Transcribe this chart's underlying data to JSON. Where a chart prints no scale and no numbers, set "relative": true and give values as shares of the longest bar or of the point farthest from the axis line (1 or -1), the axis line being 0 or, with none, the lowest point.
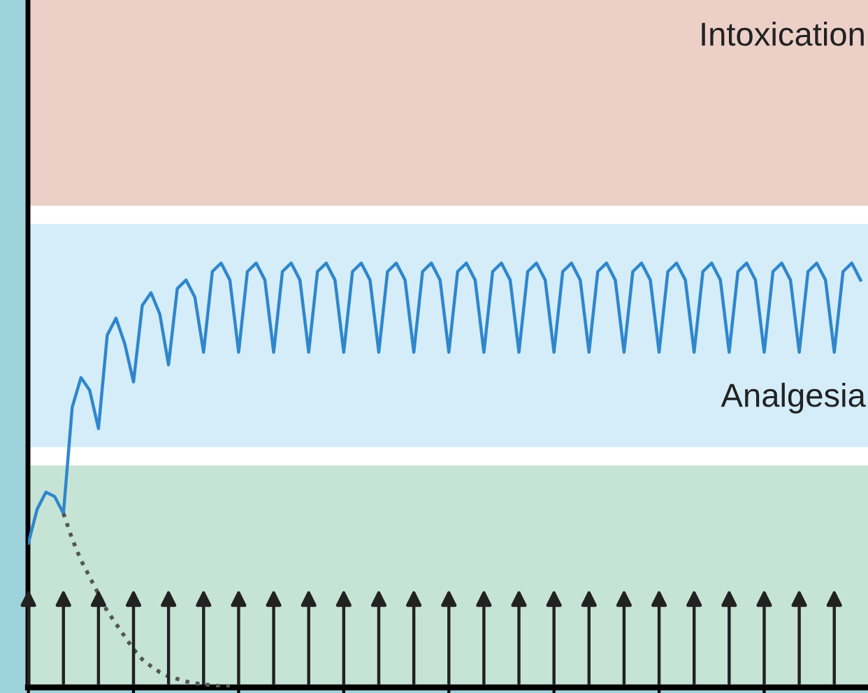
{
  "chart_data": {
    "type": "line",
    "relative": true,
    "categories": [
      null,
      null,
      null,
      null,
      null,
      null,
      null,
      null,
      null,
      null,
      null,
      null,
      null,
      null,
      null,
      null,
      null,
      null,
      null,
      null,
      null,
      null,
      null,
      null,
      null,
      null,
      null,
      null,
      null,
      null,
      null,
      null,
      null,
      null,
      null,
      null,
      null,
      null,
      null,
      null,
      null,
      null,
      null,
      null,
      null,
      null,
      null,
      null,
      null,
      null,
      null,
      null,
      null,
      null,
      null,
      null,
      null,
      null,
      null,
      null,
      null,
      null,
      null,
      null,
      null,
      null,
      null,
      null,
      null,
      null,
      null,
      null,
      null,
      null,
      null,
      null,
      null,
      null,
      null,
      null,
      null,
      null,
      null,
      null,
      null,
      null,
      null,
      null,
      null,
      null,
      null,
      null,
      null,
      null,
      null,
      null
    ],
    "series": [
      {
        "color": "#2f86cc",
        "line_style": "solid",
        "values": [
          0.34,
          0.42,
          0.46,
          0.45,
          0.41,
          0.66,
          0.73,
          0.7,
          0.61,
          0.83,
          0.87,
          0.81,
          0.72,
          0.9,
          0.93,
          0.88,
          0.76,
          0.94,
          0.96,
          0.92,
          0.79,
          0.98,
          1.0,
          0.96,
          0.79,
          0.98,
          1.0,
          0.96,
          0.79,
          0.98,
          1.0,
          0.96,
          0.79,
          0.98,
          1.0,
          0.96,
          0.79,
          0.98,
          1.0,
          0.96,
          0.79,
          0.98,
          1.0,
          0.96,
          0.79,
          0.98,
          1.0,
          0.96,
          0.79,
          0.98,
          1.0,
          0.96,
          0.79,
          0.98,
          1.0,
          0.96,
          0.79,
          0.98,
          1.0,
          0.96,
          0.79,
          0.98,
          1.0,
          0.96,
          0.79,
          0.98,
          1.0,
          0.96,
          0.79,
          0.98,
          1.0,
          0.96,
          0.79,
          0.98,
          1.0,
          0.96,
          0.79,
          0.98,
          1.0,
          0.96,
          0.79,
          0.98,
          1.0,
          0.96,
          0.79,
          0.98,
          1.0,
          0.96,
          0.79,
          0.98,
          1.0,
          0.96,
          0.79,
          0.98,
          1.0,
          0.96
        ]
      },
      {
        "color": "#555555",
        "line_style": "dotted",
        "values": [
          null,
          null,
          null,
          null,
          0.41,
          0.35,
          0.3,
          0.26,
          0.22,
          0.18,
          0.15,
          0.12,
          0.09,
          0.066,
          0.05,
          0.036,
          0.026,
          0.02,
          0.014,
          0.01,
          0.007,
          0.005,
          0.003,
          0.002,
          null,
          null,
          null,
          null,
          null,
          null,
          null,
          null,
          null,
          null,
          null,
          null,
          null,
          null,
          null,
          null,
          null,
          null,
          null,
          null,
          null,
          null,
          null,
          null,
          null,
          null,
          null,
          null,
          null,
          null,
          null,
          null,
          null,
          null,
          null,
          null,
          null,
          null,
          null,
          null,
          null,
          null,
          null,
          null,
          null,
          null,
          null,
          null,
          null,
          null,
          null,
          null,
          null,
          null,
          null,
          null,
          null,
          null,
          null,
          null,
          null,
          null,
          null,
          null,
          null,
          null,
          null,
          null,
          null,
          null,
          null,
          null
        ]
      }
    ],
    "bands": [
      {
        "axis": "y",
        "from": 1.135,
        "to": 1.62,
        "label": "Intoxication",
        "color": "#ecd0c8"
      },
      {
        "axis": "y",
        "from": 0.566,
        "to": 1.092,
        "label": "Analgesia",
        "color": "#d4edf9"
      },
      {
        "axis": "y",
        "from": 0.0,
        "to": 0.523,
        "label": null,
        "color": "#c6e4d6"
      }
    ]
  }
}
